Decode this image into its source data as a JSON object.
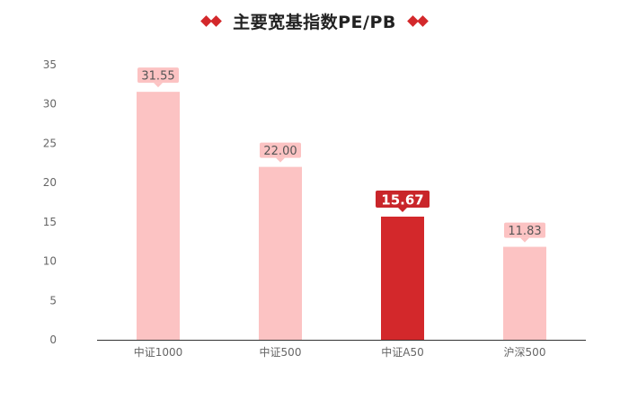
{
  "chart_data": {
    "type": "bar",
    "title": "主要宽基指数PE/PB",
    "categories": [
      "中证1000",
      "中证500",
      "中证A50",
      "沪深500"
    ],
    "values": [
      31.55,
      22.0,
      15.67,
      11.83
    ],
    "value_labels": [
      "31.55",
      "22.00",
      "15.67",
      "11.83"
    ],
    "highlight_index": 2,
    "ylim": [
      0,
      35
    ],
    "yticks": [
      0,
      5,
      10,
      15,
      20,
      25,
      30,
      35
    ],
    "grid": false,
    "legend": "none",
    "xlabel": "",
    "ylabel": ""
  },
  "colors": {
    "bar": "#fcc3c3",
    "bar_highlight": "#d3282b",
    "label_bg": "#fcc3c3",
    "label_bg_highlight": "#c9252a",
    "label_text": "#555555",
    "label_text_highlight": "#ffffff",
    "axis": "#333333",
    "tick_text": "#666666",
    "title_diamond": "#d3282b"
  }
}
